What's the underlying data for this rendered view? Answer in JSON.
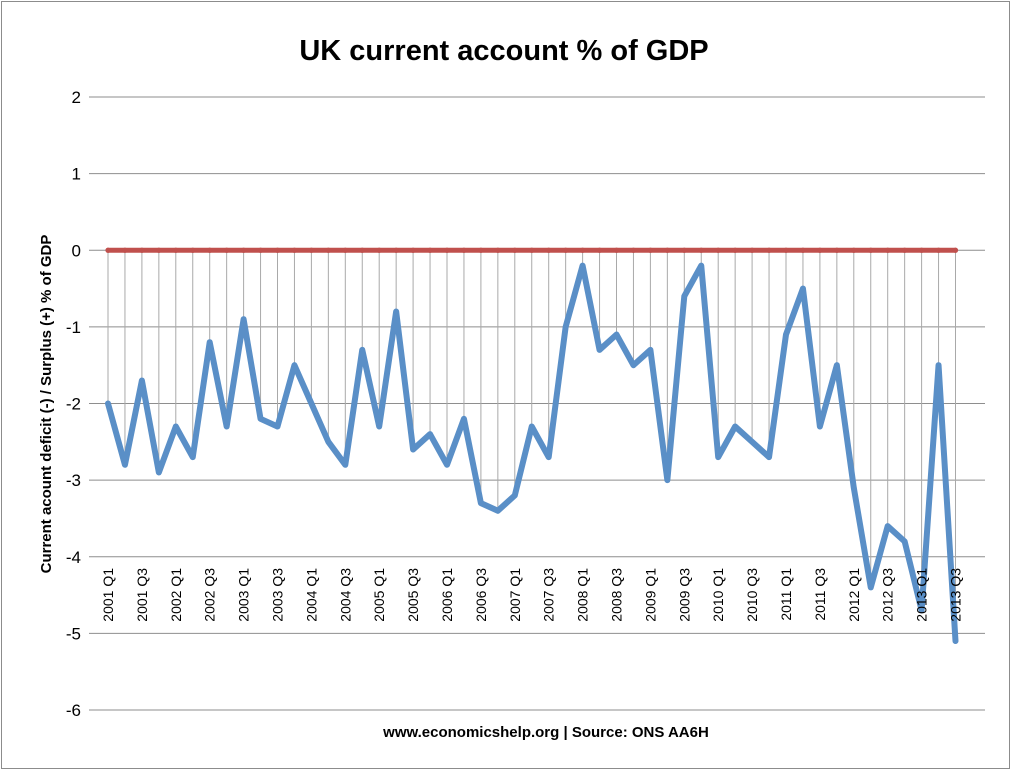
{
  "chart_data": {
    "type": "line",
    "title": "UK current account % of GDP",
    "xlabel": "www.economicshelp.org | Source: ONS AA6H",
    "ylabel": "Current acount  deficit (-) / Surplus (+) % of GDP",
    "ylim": [
      -6,
      2
    ],
    "yticks": [
      2,
      1,
      0,
      -1,
      -2,
      -3,
      -4,
      -5,
      -6
    ],
    "grid": true,
    "legend": "none",
    "categories": [
      "2001 Q1",
      "",
      "2001 Q3",
      "",
      "2002 Q1",
      "",
      "2002 Q3",
      "",
      "2003 Q1",
      "",
      "2003 Q3",
      "",
      "2004 Q1",
      "",
      "2004 Q3",
      "",
      "2005 Q1",
      "",
      "2005 Q3",
      "",
      "2006 Q1",
      "",
      "2006 Q3",
      "",
      "2007 Q1",
      "",
      "2007 Q3",
      "",
      "2008 Q1",
      "",
      "2008 Q3",
      "",
      "2009 Q1",
      "",
      "2009 Q3",
      "",
      "2010 Q1",
      "",
      "2010 Q3",
      "",
      "2011 Q1",
      "",
      "2011 Q3",
      "",
      "2012 Q1",
      "",
      "2012 Q3",
      "",
      "2013 Q1",
      "",
      "2013 Q3"
    ],
    "series": [
      {
        "color": "#5a8fc7",
        "values": [
          -2.0,
          -2.8,
          -1.7,
          -2.9,
          -2.3,
          -2.7,
          -1.2,
          -2.3,
          -0.9,
          -2.2,
          -2.3,
          -1.5,
          -2.0,
          -2.5,
          -2.8,
          -1.3,
          -2.3,
          -0.8,
          -2.6,
          -2.4,
          -2.8,
          -2.2,
          -3.3,
          -3.4,
          -3.2,
          -2.3,
          -2.7,
          -1.0,
          -0.2,
          -1.3,
          -1.1,
          -1.5,
          -1.3,
          -3.0,
          -0.6,
          -0.2,
          -2.7,
          -2.3,
          -2.5,
          -2.7,
          -1.1,
          -0.5,
          -2.3,
          -1.5,
          -3.1,
          -4.4,
          -3.6,
          -3.8,
          -4.7,
          -1.5,
          -5.1
        ]
      },
      {
        "color": "#c0504d",
        "values": [
          0,
          0,
          0,
          0,
          0,
          0,
          0,
          0,
          0,
          0,
          0,
          0,
          0,
          0,
          0,
          0,
          0,
          0,
          0,
          0,
          0,
          0,
          0,
          0,
          0,
          0,
          0,
          0,
          0,
          0,
          0,
          0,
          0,
          0,
          0,
          0,
          0,
          0,
          0,
          0,
          0,
          0,
          0,
          0,
          0,
          0,
          0,
          0,
          0,
          0,
          0
        ]
      }
    ]
  }
}
